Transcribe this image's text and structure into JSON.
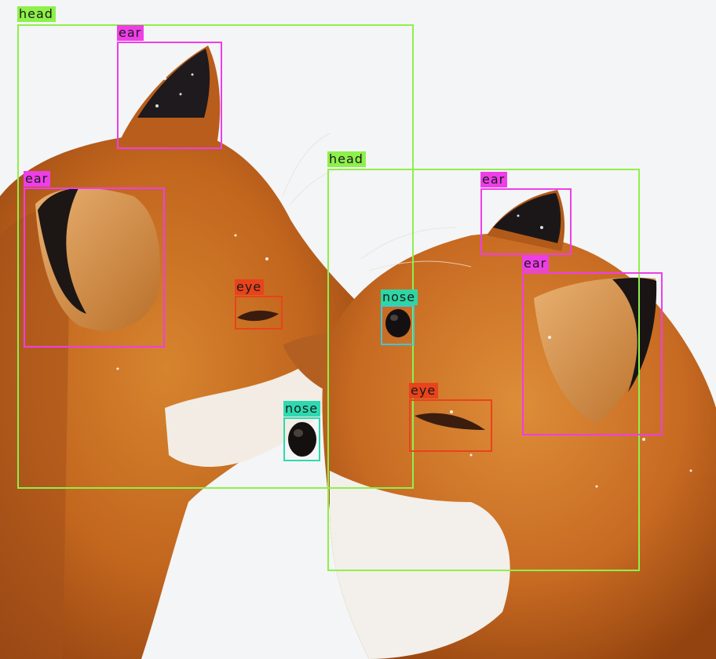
{
  "labels": {
    "head": "head",
    "ear": "ear",
    "eye": "eye",
    "nose": "nose"
  },
  "colors": {
    "background": "#f4f5f6",
    "fur": "#c2661e",
    "head_box": "#8ef04a",
    "ear_box": "#ee3ee8",
    "eye_box": "#e8431c",
    "nose_box_left": "#2ed9b0",
    "nose_box_right": "#3ec6d8",
    "nose_tag_right": "#2fd6a5"
  }
}
